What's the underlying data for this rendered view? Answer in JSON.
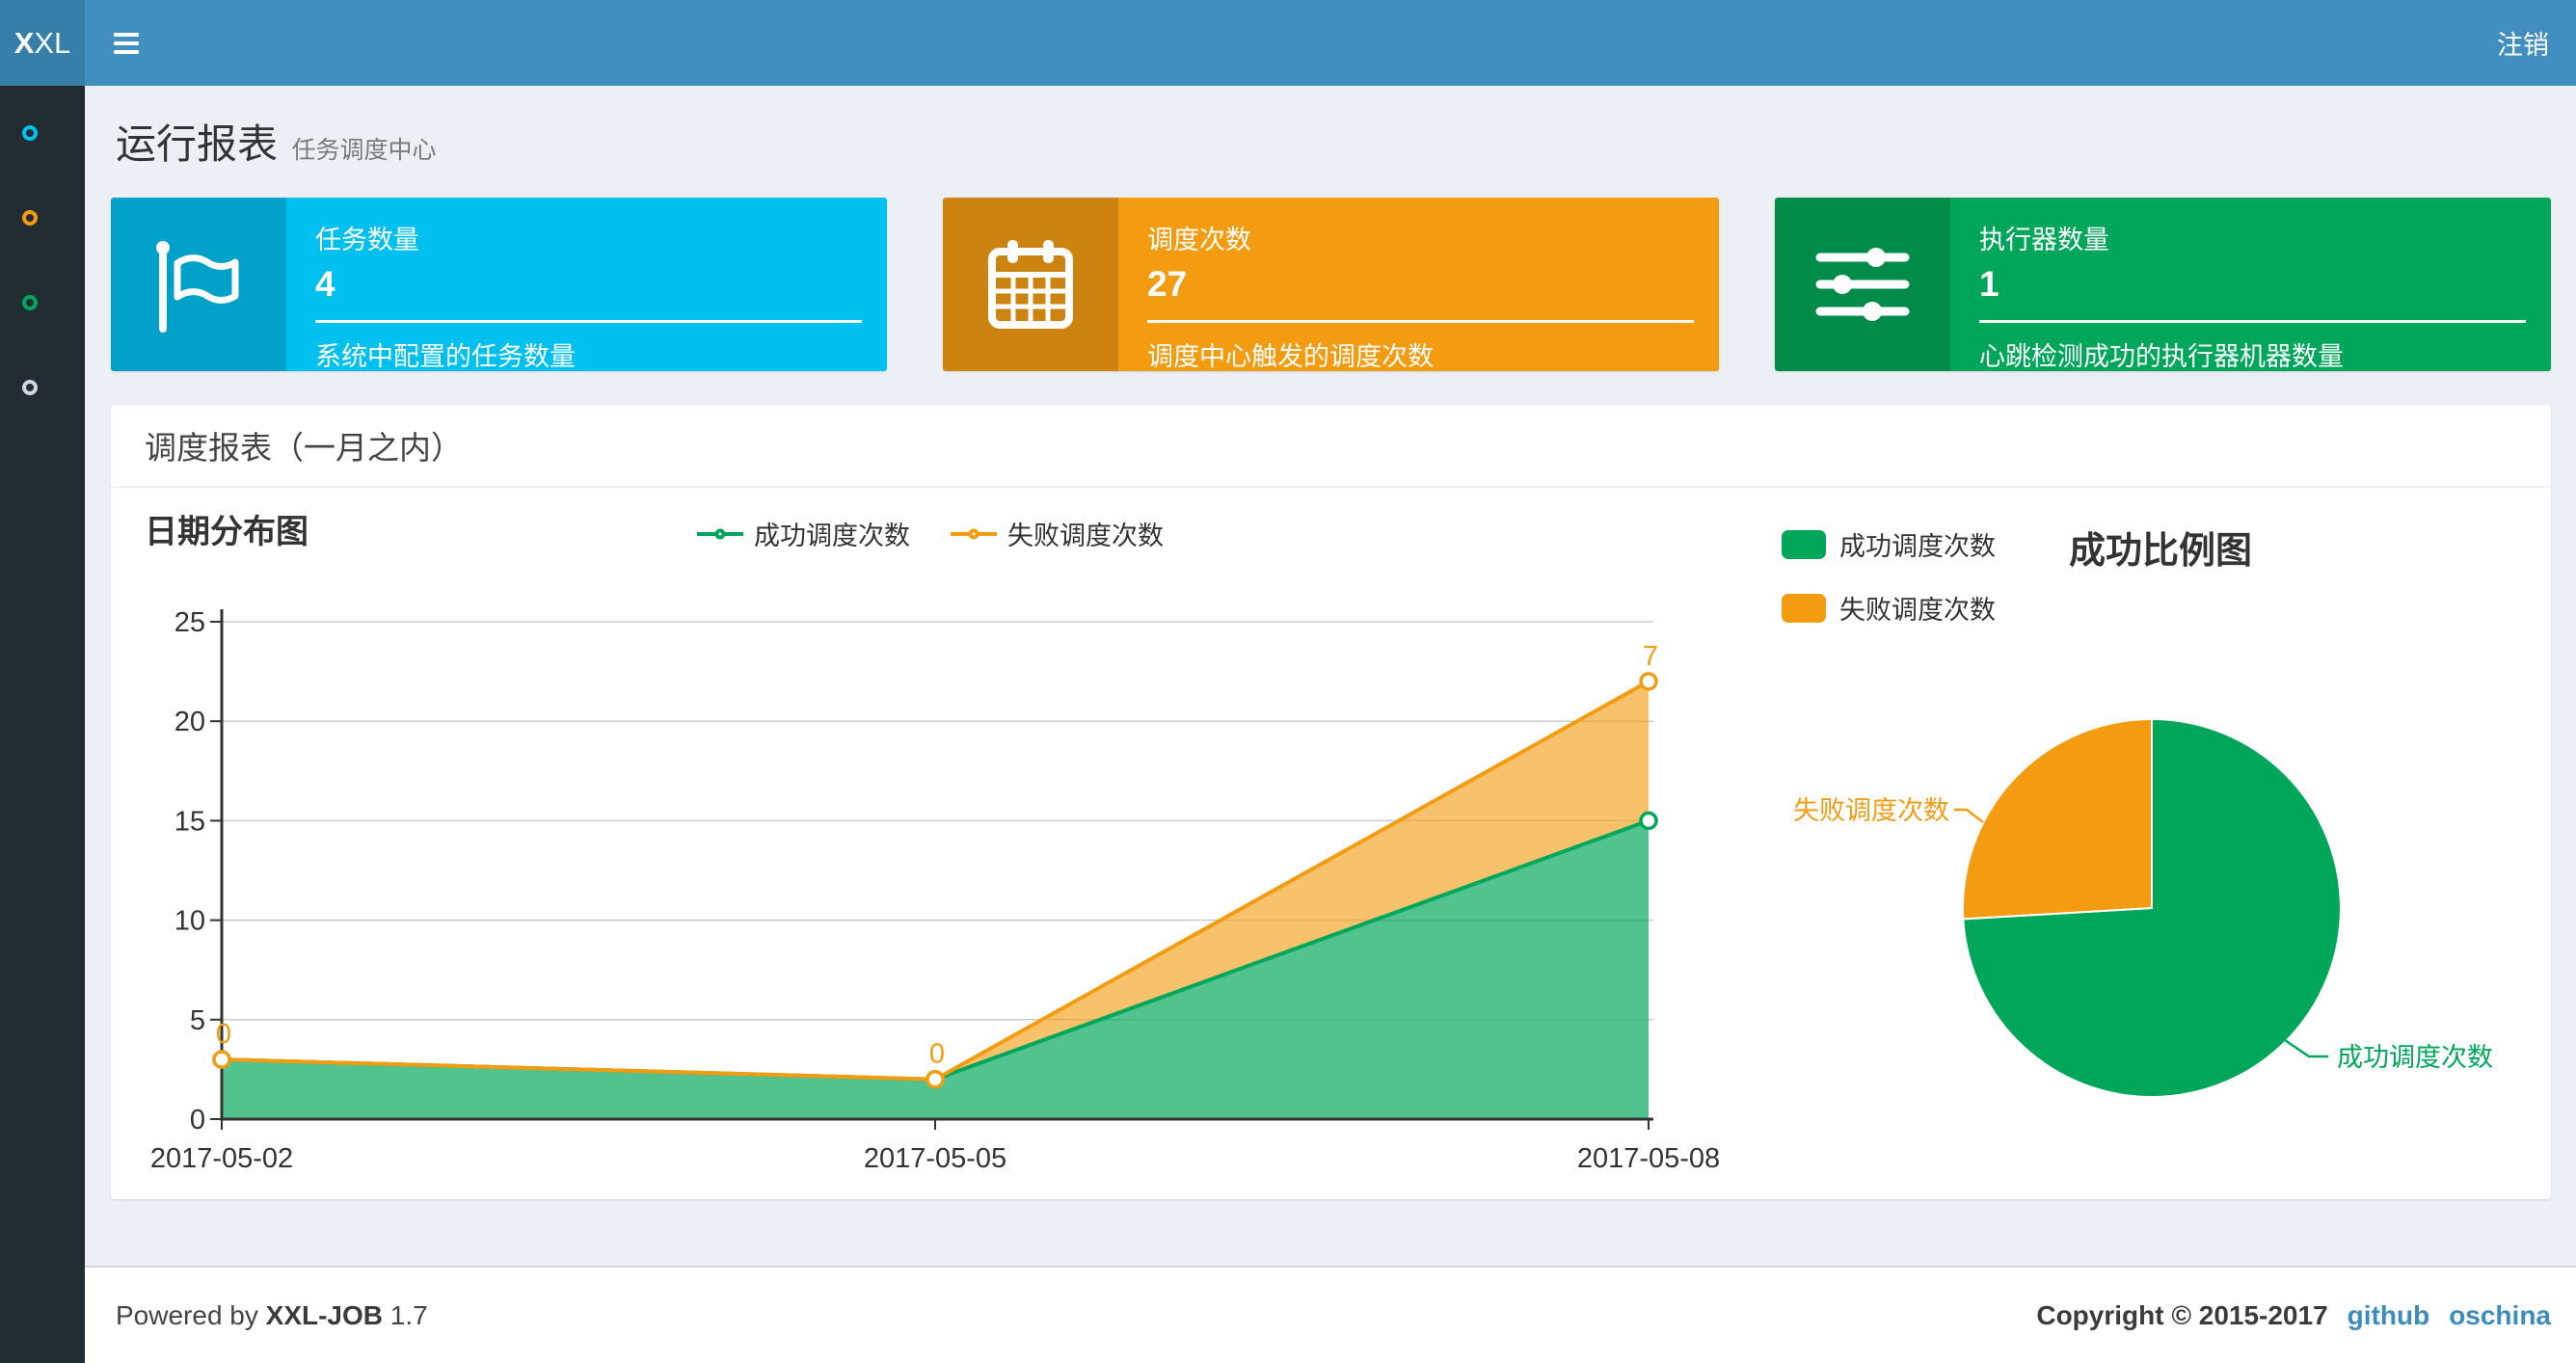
{
  "navbar": {
    "logo_bold": "X",
    "logo_rest": "XL",
    "logout_label": "注销"
  },
  "page_header": {
    "title": "运行报表",
    "subtitle": "任务调度中心"
  },
  "sidebar": {
    "items": [
      {
        "id": "report",
        "color": "#00c0ef"
      },
      {
        "id": "job",
        "color": "#f39c12"
      },
      {
        "id": "log",
        "color": "#00a65a"
      },
      {
        "id": "executor",
        "color": "#d2d6de"
      }
    ]
  },
  "info_boxes": [
    {
      "label": "任务数量",
      "value": "4",
      "desc": "系统中配置的任务数量",
      "color": "#00c0ef",
      "icon": "flag-icon"
    },
    {
      "label": "调度次数",
      "value": "27",
      "desc": "调度中心触发的调度次数",
      "color": "#f39c12",
      "icon": "calendar-icon"
    },
    {
      "label": "执行器数量",
      "value": "1",
      "desc": "心跳检测成功的执行器机器数量",
      "color": "#00a65a",
      "icon": "sliders-icon"
    }
  ],
  "panel": {
    "title": "调度报表（一月之内）"
  },
  "chart_data": [
    {
      "type": "area",
      "title": "日期分布图",
      "stacked": true,
      "grid": true,
      "legend_position": "top-center",
      "categories": [
        "2017-05-02",
        "2017-05-05",
        "2017-05-08"
      ],
      "series": [
        {
          "name": "成功调度次数",
          "color": "#00a65a",
          "values": [
            3,
            2,
            15
          ]
        },
        {
          "name": "失败调度次数",
          "color": "#f39c12",
          "values": [
            0,
            0,
            7
          ],
          "point_labels": [
            "0",
            "0",
            "7"
          ]
        }
      ],
      "ylim": [
        0,
        25
      ],
      "yticks": [
        0,
        5,
        10,
        15,
        20,
        25
      ]
    },
    {
      "type": "pie",
      "title": "成功比例图",
      "legend_position": "top-left",
      "slices": [
        {
          "name": "成功调度次数",
          "value": 20,
          "color": "#00a65a"
        },
        {
          "name": "失败调度次数",
          "value": 7,
          "color": "#f39c12"
        }
      ]
    }
  ],
  "footer": {
    "powered_prefix": "Powered by",
    "product": "XXL-JOB",
    "version": "1.7",
    "copyright": "Copyright © 2015-2017",
    "links": [
      {
        "label": "github"
      },
      {
        "label": "oschina"
      }
    ]
  },
  "colors": {
    "navbar": "#418fc0",
    "logo_bg": "#367fa9",
    "sidebar": "#222d32",
    "content_bg": "#ecf0f5",
    "link": "#3c8dbc"
  }
}
